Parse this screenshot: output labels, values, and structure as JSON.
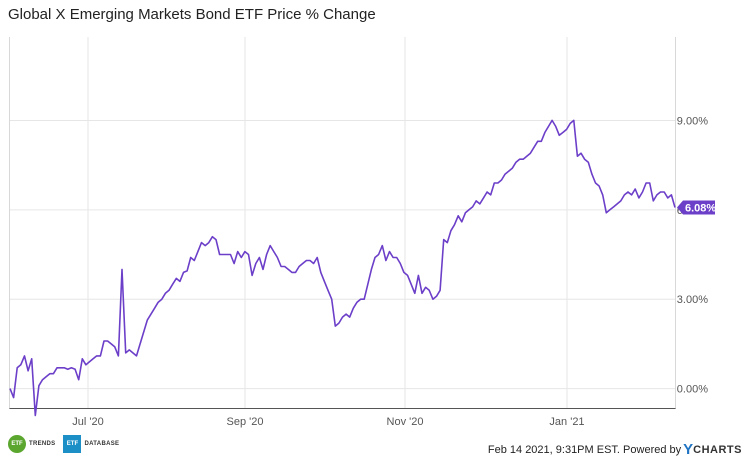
{
  "page": {
    "title": "Global X Emerging Markets Bond ETF Price % Change",
    "footer_timestamp": "Feb 14 2021, 9:31PM EST.",
    "footer_powered": "Powered by",
    "footer_brand_y": "Y",
    "footer_brand_rest": "CHARTS",
    "logo_trends_badge": "ETF",
    "logo_trends_text": "TRENDS",
    "logo_database_badge": "ETF",
    "logo_database_text": "DATABASE"
  },
  "colors": {
    "line": "#6c3fc9",
    "grid": "#e6e6e6",
    "baseline": "#555555",
    "brand_blue": "#1e73c2"
  },
  "chart_data": {
    "type": "line",
    "title": "Global X Emerging Markets Bond ETF Price % Change",
    "xlabel": "",
    "ylabel": "",
    "x_ticks": [
      "Jul '20",
      "Sep '20",
      "Nov '20",
      "Jan '21"
    ],
    "y_ticks": [
      "0.00%",
      "3.00%",
      "6.00%",
      "9.00%"
    ],
    "ylim": [
      -0.65,
      11.8
    ],
    "grid": true,
    "last_value_label": "6.08%",
    "series": [
      {
        "values": [
          0.0,
          -0.3,
          0.7,
          0.8,
          1.1,
          0.6,
          1.0,
          -0.9,
          0.1,
          0.3,
          0.4,
          0.5,
          0.5,
          0.7,
          0.7,
          0.7,
          0.65,
          0.7,
          0.65,
          0.3,
          1.0,
          0.8,
          0.9,
          1.0,
          1.1,
          1.1,
          1.6,
          1.6,
          1.5,
          1.4,
          1.1,
          4.0,
          1.2,
          1.3,
          1.2,
          1.1,
          1.5,
          1.9,
          2.3,
          2.5,
          2.7,
          2.9,
          3.0,
          3.2,
          3.3,
          3.5,
          3.7,
          3.6,
          3.9,
          3.95,
          4.4,
          4.3,
          4.6,
          4.9,
          4.8,
          4.9,
          5.1,
          5.0,
          4.5,
          4.5,
          4.5,
          4.5,
          4.2,
          4.6,
          4.4,
          4.6,
          4.5,
          3.8,
          4.2,
          4.4,
          4.0,
          4.5,
          4.8,
          4.6,
          4.4,
          4.1,
          4.1,
          4.0,
          3.9,
          3.9,
          4.1,
          4.2,
          4.3,
          4.3,
          4.2,
          4.4,
          3.9,
          3.6,
          3.3,
          3.0,
          2.1,
          2.2,
          2.4,
          2.5,
          2.4,
          2.7,
          2.9,
          3.0,
          3.0,
          3.5,
          4.0,
          4.4,
          4.5,
          4.8,
          4.3,
          4.6,
          4.4,
          4.4,
          4.2,
          3.9,
          3.8,
          3.5,
          3.2,
          3.8,
          3.2,
          3.4,
          3.3,
          3.0,
          3.1,
          3.3,
          5.0,
          4.9,
          5.3,
          5.5,
          5.8,
          5.6,
          5.9,
          6.0,
          6.1,
          6.3,
          6.2,
          6.4,
          6.6,
          6.5,
          6.9,
          6.9,
          7.0,
          7.2,
          7.3,
          7.4,
          7.6,
          7.7,
          7.7,
          7.8,
          7.9,
          8.1,
          8.3,
          8.3,
          8.6,
          8.8,
          9.0,
          8.8,
          8.5,
          8.6,
          8.7,
          8.9,
          9.0,
          7.8,
          7.9,
          7.7,
          7.6,
          7.2,
          6.9,
          6.8,
          6.5,
          5.9,
          6.0,
          6.1,
          6.2,
          6.3,
          6.5,
          6.6,
          6.5,
          6.7,
          6.4,
          6.6,
          6.9,
          6.9,
          6.3,
          6.5,
          6.6,
          6.6,
          6.4,
          6.5,
          6.08
        ]
      }
    ]
  }
}
